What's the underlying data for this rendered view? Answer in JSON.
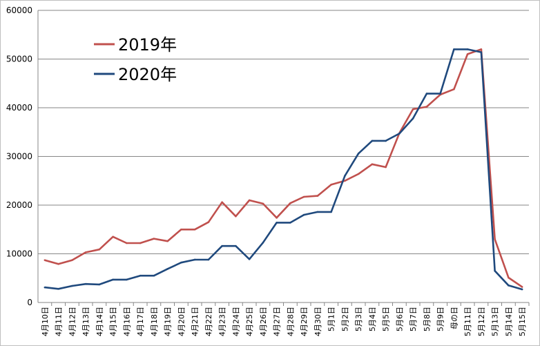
{
  "chart_data": {
    "type": "line",
    "title": "",
    "xlabel": "",
    "ylabel": "",
    "ylim": [
      0,
      60000
    ],
    "yticks": [
      0,
      10000,
      20000,
      30000,
      40000,
      50000,
      60000
    ],
    "grid": "horizontal",
    "legend_position": "top-left",
    "categories": [
      "4月10日",
      "4月11日",
      "4月12日",
      "4月13日",
      "4月14日",
      "4月15日",
      "4月16日",
      "4月17日",
      "4月18日",
      "4月19日",
      "4月20日",
      "4月21日",
      "4月22日",
      "4月23日",
      "4月24日",
      "4月25日",
      "4月26日",
      "4月27日",
      "4月28日",
      "4月29日",
      "4月30日",
      "5月1日",
      "5月2日",
      "5月3日",
      "5月4日",
      "5月5日",
      "5月6日",
      "5月7日",
      "5月8日",
      "5月9日",
      "母の日",
      "5月11日",
      "5月12日",
      "5月13日",
      "5月14日",
      "5月15日"
    ],
    "series": [
      {
        "name": "2019年",
        "color": "#c0504d",
        "values": [
          8700,
          7900,
          8700,
          10300,
          10900,
          13500,
          12200,
          12200,
          13100,
          12600,
          15000,
          15000,
          16500,
          20600,
          17700,
          21000,
          20300,
          17400,
          20400,
          21700,
          21900,
          24200,
          25000,
          26400,
          28400,
          27800,
          34800,
          39700,
          40200,
          42700,
          43800,
          51000,
          52000,
          13000,
          5100,
          3200
        ]
      },
      {
        "name": "2020年",
        "color": "#1f497d",
        "values": [
          3100,
          2800,
          3400,
          3800,
          3700,
          4700,
          4700,
          5500,
          5500,
          6900,
          8200,
          8800,
          8800,
          11600,
          11600,
          8900,
          12300,
          16400,
          16400,
          18000,
          18600,
          18600,
          26000,
          30600,
          33200,
          33200,
          34700,
          37800,
          42900,
          42900,
          52000,
          52000,
          51400,
          6500,
          3500,
          2700
        ]
      }
    ]
  }
}
